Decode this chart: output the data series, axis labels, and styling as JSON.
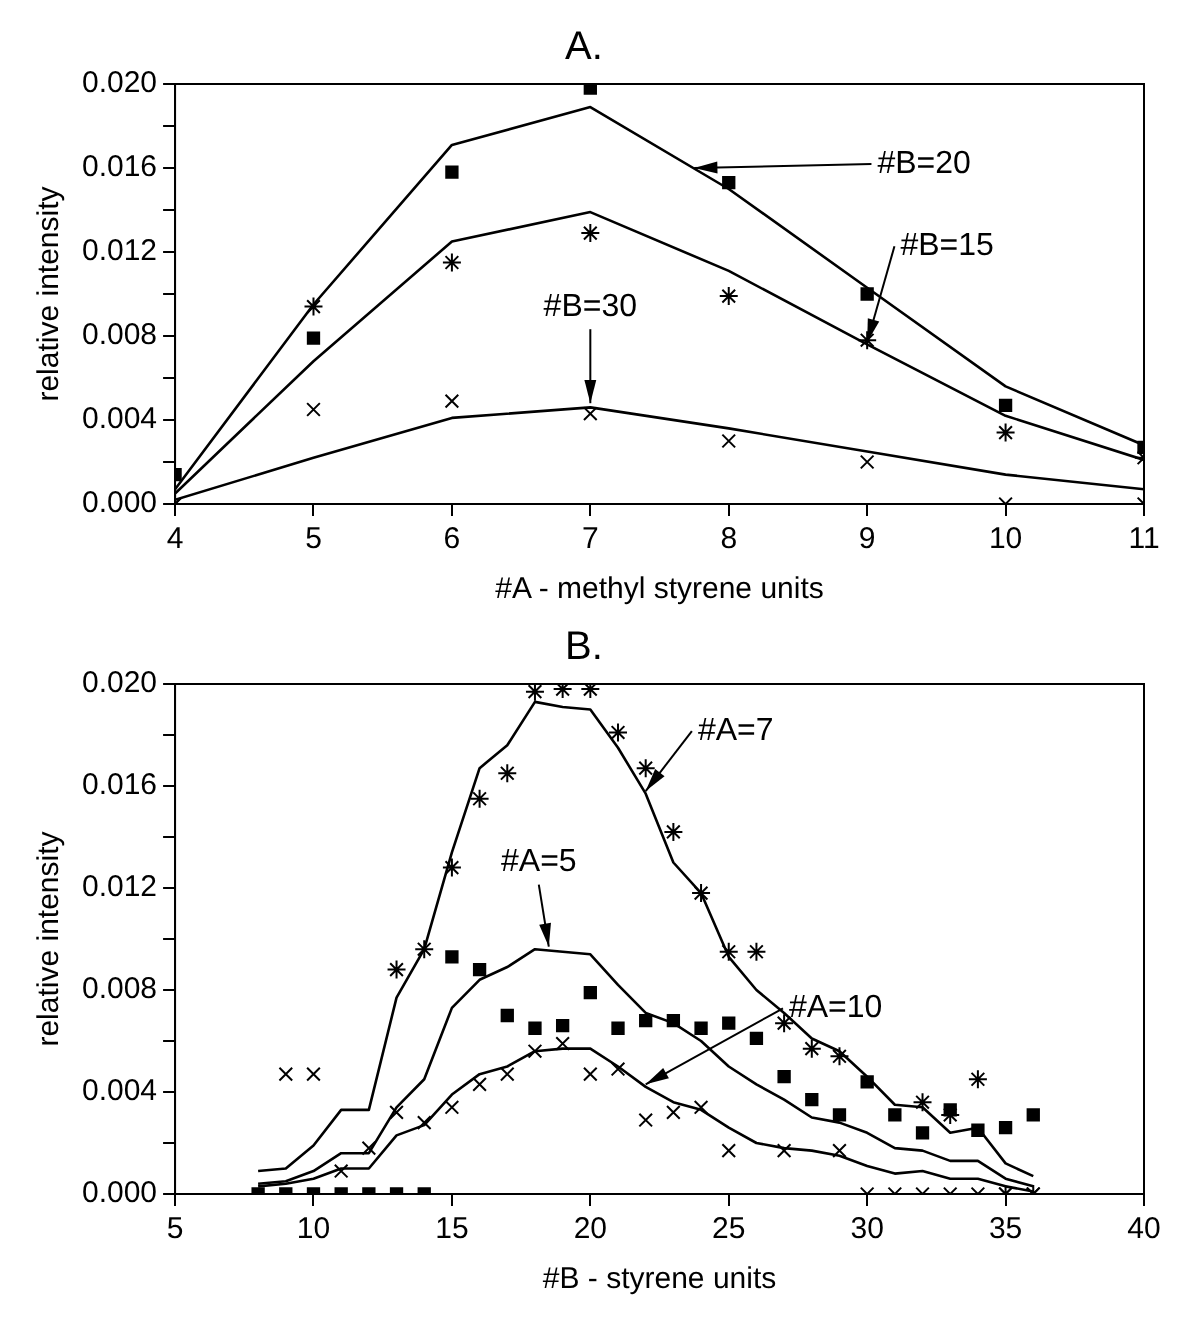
{
  "chart_data": [
    {
      "type": "scatter",
      "title": "A.",
      "xlabel": "#A - methyl styrene units",
      "ylabel": "relative intensity",
      "x": [
        4,
        5,
        6,
        7,
        8,
        9,
        10,
        11
      ],
      "xlim": [
        4,
        11
      ],
      "xticks": [
        4,
        5,
        6,
        7,
        8,
        9,
        10,
        11
      ],
      "ylim": [
        0,
        0.02
      ],
      "yticks": [
        {
          "value": 0,
          "label": "0.000"
        },
        {
          "value": 0.002,
          "label": null
        },
        {
          "value": 0.004,
          "label": "0.004"
        },
        {
          "value": 0.006,
          "label": null
        },
        {
          "value": 0.008,
          "label": "0.008"
        },
        {
          "value": 0.01,
          "label": null
        },
        {
          "value": 0.012,
          "label": "0.012"
        },
        {
          "value": 0.014,
          "label": null
        },
        {
          "value": 0.016,
          "label": "0.016"
        },
        {
          "value": 0.018,
          "label": null
        },
        {
          "value": 0.02,
          "label": "0.020"
        }
      ],
      "grid": false,
      "legend": false,
      "series": [
        {
          "type": "scatter",
          "marker": "square",
          "color": "#000000",
          "values": [
            0.0014,
            0.0079,
            0.0158,
            0.0198,
            0.0153,
            0.01,
            0.0047,
            0.0027
          ]
        },
        {
          "type": "scatter",
          "color": "#000000",
          "values": [
            0,
            0.0094,
            0.0115,
            0.0129,
            0.0099,
            0.0078,
            0.0034,
            0.0022
          ]
        },
        {
          "type": "scatter",
          "marker": "cross",
          "color": "#000000",
          "values": [
            0,
            0.0045,
            0.0049,
            0.0043,
            0.003,
            0.002,
            0,
            0
          ]
        },
        {
          "type": "line",
          "marker": "none",
          "color": "#000000",
          "values": [
            0.0007,
            0.0095,
            0.0171,
            0.0189,
            0.015,
            0.0103,
            0.0056,
            0.0028
          ]
        },
        {
          "type": "line",
          "marker": "none",
          "color": "#000000",
          "values": [
            0.0005,
            0.0068,
            0.0125,
            0.0139,
            0.0111,
            0.0076,
            0.0042,
            0.0021
          ]
        },
        {
          "type": "line",
          "marker": "none",
          "color": "#000000",
          "values": [
            0.0002,
            0.0022,
            0.0041,
            0.0046,
            0.0036,
            0.0025,
            0.0014,
            0.0007
          ]
        }
      ],
      "annotations": [
        {
          "text": "#B=20",
          "x": 7.75,
          "y": 0.016
        },
        {
          "text": "#B=15",
          "x": 9,
          "y": 0.0077
        },
        {
          "text": "#B=30",
          "x": 7,
          "y": 0.0048
        }
      ]
    },
    {
      "type": "scatter",
      "title": "B.",
      "xlabel": "#B - styrene units",
      "ylabel": "relative intensity",
      "x": [
        8,
        9,
        10,
        11,
        12,
        13,
        14,
        15,
        16,
        17,
        18,
        19,
        20,
        21,
        22,
        23,
        24,
        25,
        26,
        27,
        28,
        29,
        30,
        31,
        32,
        33,
        34,
        35,
        36
      ],
      "xlim": [
        5,
        40
      ],
      "xticks": [
        5,
        10,
        15,
        20,
        25,
        30,
        35,
        40
      ],
      "ylim": [
        0,
        0.02
      ],
      "yticks": [
        {
          "value": 0,
          "label": "0.000"
        },
        {
          "value": 0.002,
          "label": null
        },
        {
          "value": 0.004,
          "label": "0.004"
        },
        {
          "value": 0.006,
          "label": null
        },
        {
          "value": 0.008,
          "label": "0.008"
        },
        {
          "value": 0.01,
          "label": null
        },
        {
          "value": 0.012,
          "label": "0.012"
        },
        {
          "value": 0.014,
          "label": null
        },
        {
          "value": 0.016,
          "label": "0.016"
        },
        {
          "value": 0.018,
          "label": null
        },
        {
          "value": 0.02,
          "label": "0.020"
        }
      ],
      "grid": false,
      "legend": false,
      "series": [
        {
          "type": "scatter",
          "marker": "square",
          "color": "#000000",
          "values": [
            0,
            0,
            0,
            0,
            0,
            0,
            0,
            0.0093,
            0.0088,
            0.007,
            0.0065,
            0.0066,
            0.0079,
            0.0065,
            0.0068,
            0.0068,
            0.0065,
            0.0067,
            0.0061,
            0.0046,
            0.0037,
            0.0031,
            0.0044,
            0.0031,
            0.0024,
            0.0033,
            0.0025,
            0.0026,
            0.0031
          ]
        },
        {
          "type": "scatter",
          "color": "#000000",
          "x": [
            13,
            14,
            15,
            16,
            17,
            18,
            19,
            20,
            21,
            22,
            23,
            24,
            25,
            26,
            27,
            28,
            29,
            30,
            31,
            32,
            33,
            34,
            35,
            36
          ],
          "values": [
            0.0088,
            0.0096,
            0.0128,
            0.0155,
            0.0165,
            0.0197,
            0.0198,
            0.0198,
            0.0181,
            0.0167,
            0.0142,
            0.0118,
            0.0095,
            0.0095,
            0.0067,
            0.0057,
            0.0054,
            null,
            null,
            0.0036,
            0.0031,
            0.0045,
            0,
            0
          ]
        },
        {
          "type": "scatter",
          "marker": "cross",
          "color": "#000000",
          "values": [
            null,
            0.0047,
            0.0047,
            0.0009,
            0.0018,
            0.0032,
            0.0028,
            0.0034,
            0.0043,
            0.0047,
            0.0056,
            0.0059,
            0.0047,
            0.0049,
            0.0029,
            0.0032,
            0.0034,
            0.0017,
            null,
            0.0017,
            null,
            0.0017,
            0,
            0,
            0,
            0,
            0,
            0,
            0
          ]
        },
        {
          "type": "line",
          "marker": "none",
          "color": "#000000",
          "values": [
            0.0009,
            0.001,
            0.0019,
            0.0033,
            0.0033,
            0.0077,
            0.0096,
            0.0134,
            0.0167,
            0.0176,
            0.0193,
            0.0191,
            0.019,
            0.0175,
            0.0157,
            0.013,
            0.0118,
            0.0093,
            0.008,
            0.0071,
            0.0061,
            0.0056,
            0.0046,
            0.0035,
            0.0034,
            0.0024,
            0.0026,
            0.0012,
            0.0007
          ]
        },
        {
          "type": "line",
          "marker": "none",
          "color": "#000000",
          "values": [
            0.0004,
            0.0005,
            0.0009,
            0.0016,
            0.0016,
            0.0034,
            0.0045,
            0.0073,
            0.0084,
            0.0089,
            0.0096,
            0.0095,
            0.0094,
            0.0082,
            0.0071,
            0.0067,
            0.006,
            0.005,
            0.0043,
            0.0037,
            0.003,
            0.0028,
            0.0024,
            0.0018,
            0.0017,
            0.0013,
            0.0013,
            0.0006,
            0.0003
          ]
        },
        {
          "type": "line",
          "marker": "none",
          "color": "#000000",
          "values": [
            0.0003,
            0.0004,
            0.0006,
            0.001,
            0.001,
            0.0023,
            0.0027,
            0.0039,
            0.0047,
            0.005,
            0.0056,
            0.0057,
            0.0057,
            0.005,
            0.0042,
            0.0036,
            0.0033,
            0.0026,
            0.002,
            0.0018,
            0.0017,
            0.0015,
            0.0011,
            0.0008,
            0.0009,
            0.0006,
            0.0006,
            0.0003,
            0.0001
          ]
        }
      ],
      "annotations": [
        {
          "text": "#A=7",
          "x": 22,
          "y": 0.0158
        },
        {
          "text": "#A=5",
          "x": 18.5,
          "y": 0.0097
        },
        {
          "text": "#A=10",
          "x": 22,
          "y": 0.0043
        }
      ]
    }
  ]
}
